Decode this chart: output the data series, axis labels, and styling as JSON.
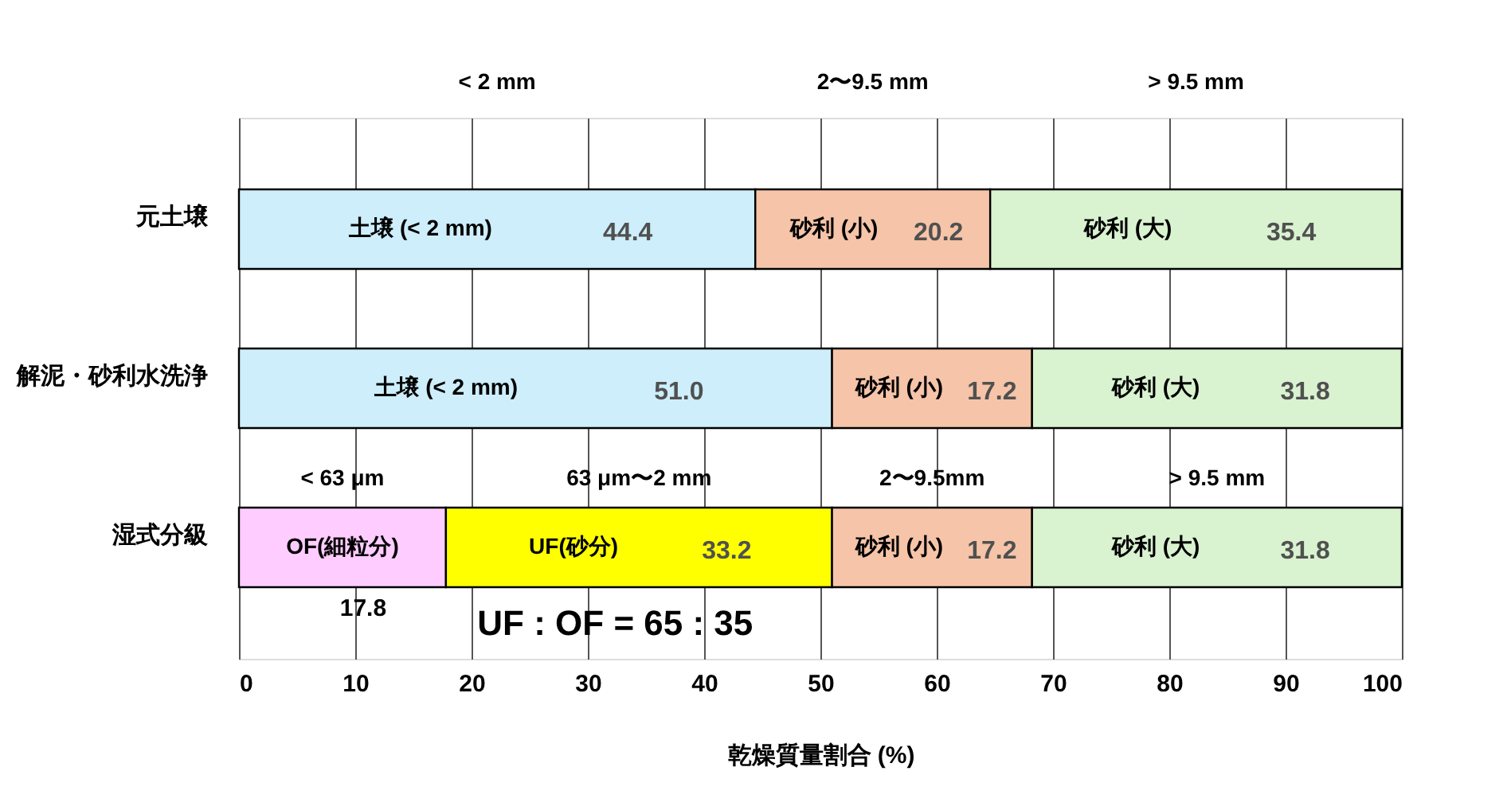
{
  "chart_data": {
    "type": "bar",
    "orientation": "horizontal",
    "stacked": true,
    "categories": [
      "元土壌",
      "解泥・砂利水洗浄",
      "湿式分級"
    ],
    "series": [
      {
        "name": "OF(細粒分)",
        "color": "#ffccff",
        "values": [
          null,
          null,
          17.8
        ],
        "value_labels": [
          null,
          null,
          "17.8"
        ]
      },
      {
        "name": "土壌 (< 2 mm)",
        "color": "#cdeefa",
        "values": [
          44.4,
          51.0,
          null
        ],
        "value_labels": [
          "44.4",
          "51.0",
          null
        ]
      },
      {
        "name": "UF(砂分)",
        "color": "#ffff00",
        "values": [
          null,
          null,
          33.2
        ],
        "value_labels": [
          null,
          null,
          "33.2"
        ]
      },
      {
        "name": "砂利 (小)",
        "color": "#f6c4a8",
        "values": [
          20.2,
          17.2,
          17.2
        ],
        "value_labels": [
          "20.2",
          "17.2",
          "17.2"
        ]
      },
      {
        "name": "砂利 (大)",
        "color": "#d9f2d0",
        "values": [
          35.4,
          31.8,
          31.8
        ],
        "value_labels": [
          "35.4",
          "31.8",
          "31.8"
        ]
      }
    ],
    "xlim": [
      0,
      100
    ],
    "xticks": [
      0,
      10,
      20,
      30,
      40,
      50,
      60,
      70,
      80,
      90,
      100
    ],
    "xlabel": "乾燥質量割合 (%)",
    "grid": "x",
    "legend": false,
    "annotations": [
      "< 2 mm",
      "2〜9.5 mm",
      "> 9.5 mm",
      "< 63 μm",
      "63 μm〜2 mm",
      "2〜9.5mm",
      "> 9.5 mm",
      "UF : OF = 65 : 35"
    ]
  }
}
